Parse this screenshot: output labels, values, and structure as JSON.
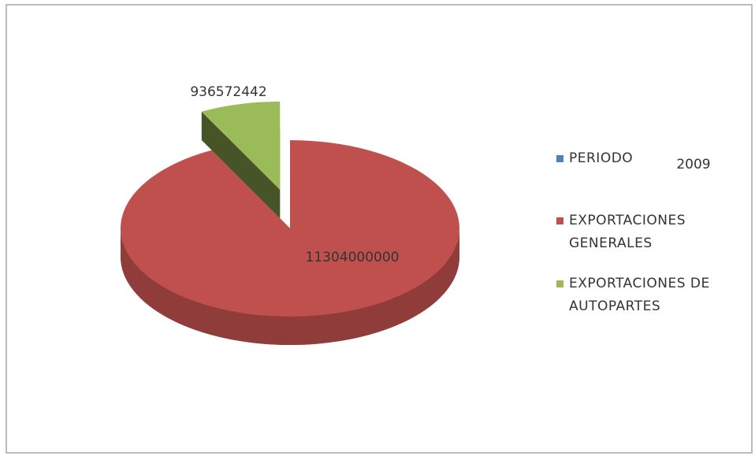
{
  "chart_data": {
    "type": "pie",
    "pie_3d": true,
    "categories": [
      "PERIODO",
      "EXPORTACIONES GENERALES",
      "EXPORTACIONES DE AUTOPARTES"
    ],
    "values": [
      2009,
      11304000000,
      936572442
    ],
    "colors": [
      "#4f81bd",
      "#c0504d",
      "#9bbb59"
    ],
    "exploded": [
      false,
      false,
      true
    ],
    "legend": "right"
  }
}
